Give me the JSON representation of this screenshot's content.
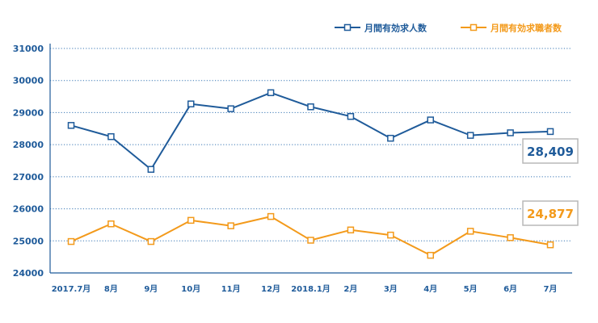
{
  "colors": {
    "axis": "#1f5b9a",
    "grid": "#3b78b5",
    "series1": "#1f5b9a",
    "series2": "#f39a1b",
    "callout_border": "#b8b8b8"
  },
  "chart_data": {
    "type": "line",
    "categories": [
      "2017.7月",
      "8月",
      "9月",
      "10月",
      "11月",
      "12月",
      "2018.1月",
      "2月",
      "3月",
      "4月",
      "5月",
      "6月",
      "7月"
    ],
    "ylim": [
      24000,
      31000
    ],
    "yticks": [
      24000,
      25000,
      26000,
      27000,
      28000,
      29000,
      30000,
      31000
    ],
    "grid": true,
    "legend_position": "top-right",
    "series": [
      {
        "name": "月間有効求人数",
        "color": "#1f5b9a",
        "values": [
          28600,
          28250,
          27230,
          29270,
          29120,
          29620,
          29180,
          28880,
          28200,
          28770,
          28290,
          28370,
          28409
        ],
        "last_label": "28,409"
      },
      {
        "name": "月間有効求職者数",
        "color": "#f39a1b",
        "values": [
          24980,
          25530,
          24980,
          25640,
          25470,
          25760,
          25020,
          25340,
          25180,
          24550,
          25300,
          25100,
          24877
        ],
        "last_label": "24,877"
      }
    ]
  }
}
